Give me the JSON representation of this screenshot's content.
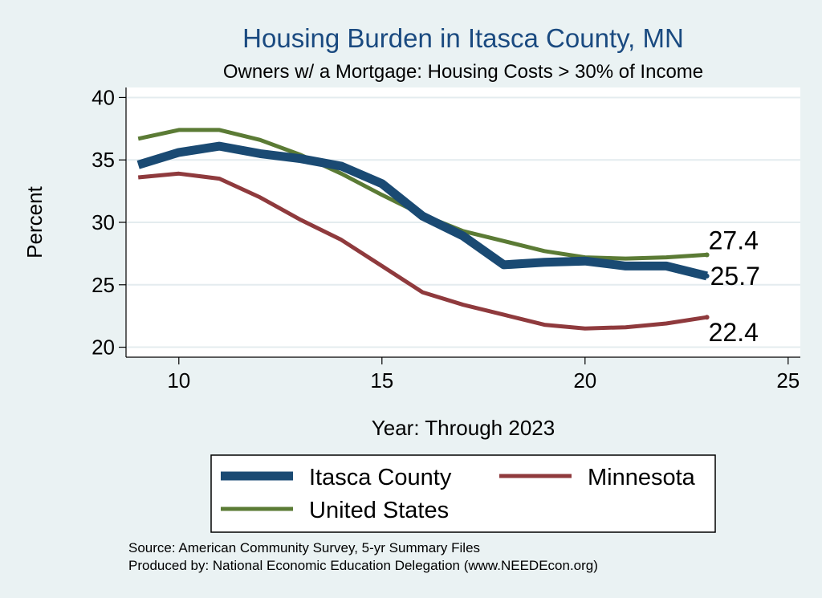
{
  "chart_data": {
    "type": "line",
    "title": "Housing Burden in Itasca County, MN",
    "subtitle": "Owners w/ a Mortgage: Housing Costs > 30% of Income",
    "xlabel": "Year: Through 2023",
    "ylabel": "Percent",
    "xlim": [
      8.7,
      25.3
    ],
    "ylim": [
      19.2,
      40.8
    ],
    "xticks": [
      10,
      15,
      20,
      25
    ],
    "yticks": [
      20,
      25,
      30,
      35,
      40
    ],
    "grid": true,
    "legend_position": "bottom",
    "x": [
      9,
      10,
      11,
      12,
      13,
      14,
      15,
      16,
      17,
      18,
      19,
      20,
      21,
      22,
      23
    ],
    "series": [
      {
        "name": "Itasca County",
        "color": "#1a4a73",
        "width": 11,
        "values": [
          34.6,
          35.6,
          36.1,
          35.5,
          35.1,
          34.5,
          33.1,
          30.5,
          28.9,
          26.6,
          26.8,
          26.9,
          26.5,
          26.5,
          25.7
        ],
        "end_label": "25.7"
      },
      {
        "name": "Minnesota",
        "color": "#8f3a3d",
        "width": 5,
        "values": [
          33.6,
          33.9,
          33.5,
          32.0,
          30.2,
          28.6,
          26.5,
          24.4,
          23.4,
          22.6,
          21.8,
          21.5,
          21.6,
          21.9,
          22.4
        ],
        "end_label": "22.4"
      },
      {
        "name": "United States",
        "color": "#5b7b35",
        "width": 5,
        "values": [
          36.7,
          37.4,
          37.4,
          36.6,
          35.4,
          33.9,
          32.2,
          30.6,
          29.3,
          28.5,
          27.7,
          27.2,
          27.1,
          27.2,
          27.4
        ],
        "end_label": "27.4"
      }
    ],
    "source_note": "Source: American Community Survey, 5-yr Summary Files",
    "produced_note": "Produced by: National Economic Education Delegation (www.NEEDEcon.org)"
  }
}
